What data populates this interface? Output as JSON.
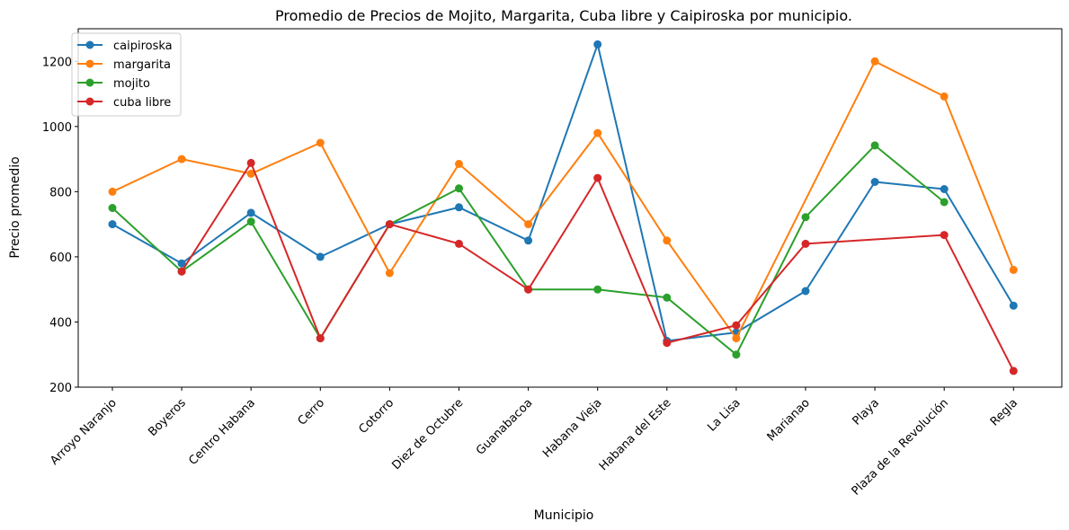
{
  "chart_data": {
    "type": "line",
    "title": "Promedio de Precios de Mojito, Margarita, Cuba libre y Caipiroska por municipio.",
    "xlabel": "Municipio",
    "ylabel": "Precio promedio",
    "ylim": [
      200,
      1300
    ],
    "yticks": [
      "200",
      "400",
      "600",
      "800",
      "1000",
      "1200"
    ],
    "categories": [
      "Arroyo Naranjo",
      "Boyeros",
      "Centro Habana",
      "Cerro",
      "Cotorro",
      "Diez de Octubre",
      "Guanabacoa",
      "Habana Vieja",
      "Habana del Este",
      "La Lisa",
      "Marianao",
      "Playa",
      "Plaza de la Revolución",
      "Regla"
    ],
    "legend_position": "upper-left",
    "grid": false,
    "series": [
      {
        "name": "caipiroska",
        "color": "#1f77b4",
        "values": [
          700,
          580,
          735,
          600,
          700,
          752,
          650,
          1252,
          342,
          368,
          495,
          830,
          808,
          450
        ]
      },
      {
        "name": "margarita",
        "color": "#ff7f0e",
        "values": [
          800,
          900,
          855,
          950,
          550,
          885,
          700,
          980,
          650,
          350,
          null,
          1200,
          1092,
          560
        ]
      },
      {
        "name": "mojito",
        "color": "#2ca02c",
        "values": [
          750,
          555,
          708,
          350,
          700,
          810,
          500,
          500,
          475,
          300,
          722,
          942,
          768,
          null
        ]
      },
      {
        "name": "cuba libre",
        "color": "#d62728",
        "values": [
          null,
          555,
          888,
          350,
          700,
          640,
          500,
          842,
          336,
          390,
          640,
          null,
          667,
          250
        ]
      }
    ]
  }
}
